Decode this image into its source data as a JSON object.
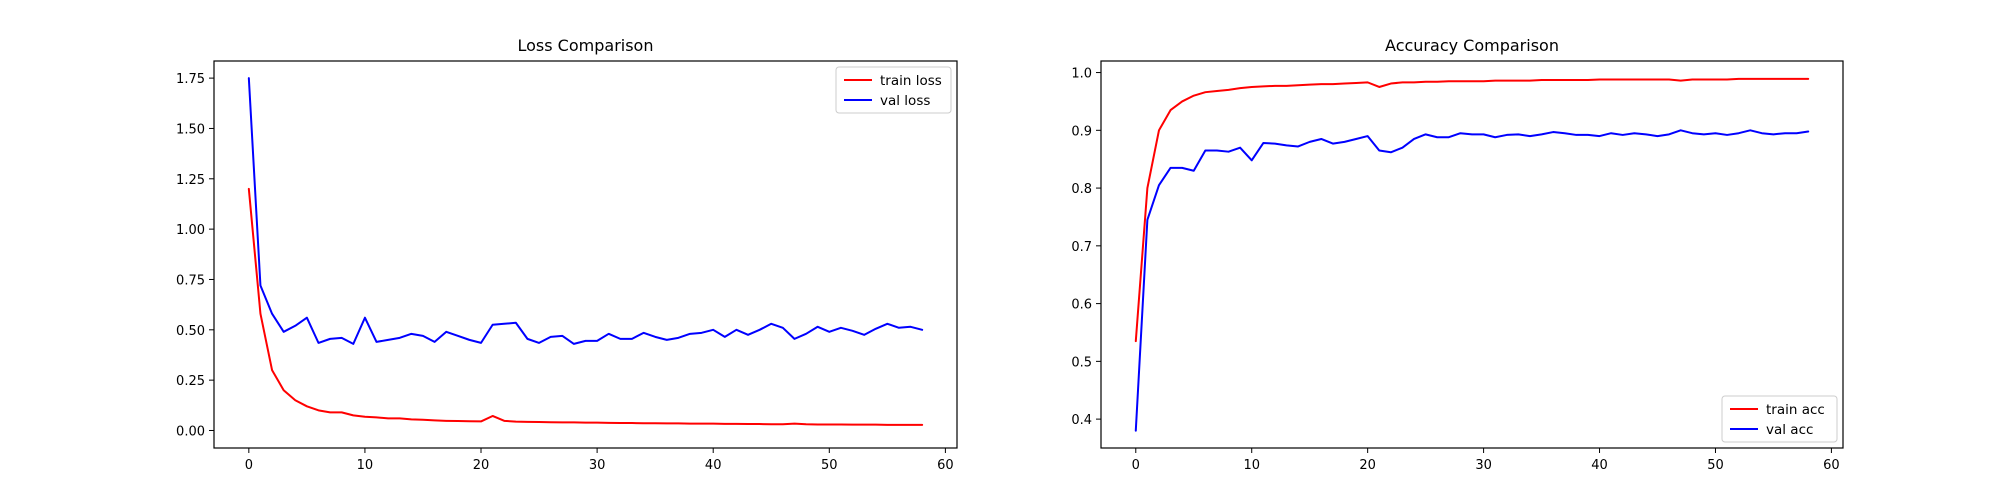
{
  "chart_data": [
    {
      "type": "line",
      "title": "Loss Comparison",
      "xlabel": "",
      "ylabel": "",
      "xlim": [
        -3,
        61
      ],
      "ylim": [
        -0.087,
        1.835
      ],
      "xticks": [
        0,
        10,
        20,
        30,
        40,
        50,
        60
      ],
      "yticks": [
        0.0,
        0.25,
        0.5,
        0.75,
        1.0,
        1.25,
        1.5,
        1.75
      ],
      "ytick_labels": [
        "0.00",
        "0.25",
        "0.50",
        "0.75",
        "1.00",
        "1.25",
        "1.50",
        "1.75"
      ],
      "grid": false,
      "legend_position": "upper right",
      "x": [
        0,
        1,
        2,
        3,
        4,
        5,
        6,
        7,
        8,
        9,
        10,
        11,
        12,
        13,
        14,
        15,
        16,
        17,
        18,
        19,
        20,
        21,
        22,
        23,
        24,
        25,
        26,
        27,
        28,
        29,
        30,
        31,
        32,
        33,
        34,
        35,
        36,
        37,
        38,
        39,
        40,
        41,
        42,
        43,
        44,
        45,
        46,
        47,
        48,
        49,
        50,
        51,
        52,
        53,
        54,
        55,
        56,
        57,
        58
      ],
      "series": [
        {
          "name": "train loss",
          "color": "#ff0000",
          "values": [
            1.2,
            0.58,
            0.3,
            0.2,
            0.15,
            0.12,
            0.1,
            0.09,
            0.09,
            0.075,
            0.068,
            0.065,
            0.06,
            0.06,
            0.055,
            0.053,
            0.05,
            0.048,
            0.047,
            0.046,
            0.045,
            0.072,
            0.048,
            0.044,
            0.043,
            0.042,
            0.041,
            0.04,
            0.04,
            0.039,
            0.039,
            0.038,
            0.037,
            0.037,
            0.036,
            0.036,
            0.035,
            0.035,
            0.034,
            0.034,
            0.034,
            0.033,
            0.033,
            0.032,
            0.032,
            0.031,
            0.031,
            0.034,
            0.031,
            0.03,
            0.03,
            0.03,
            0.029,
            0.029,
            0.029,
            0.028,
            0.028,
            0.028,
            0.028
          ]
        },
        {
          "name": "val loss",
          "color": "#0000ff",
          "values": [
            1.75,
            0.72,
            0.58,
            0.49,
            0.52,
            0.56,
            0.435,
            0.455,
            0.46,
            0.43,
            0.56,
            0.44,
            0.45,
            0.46,
            0.48,
            0.47,
            0.44,
            0.49,
            0.47,
            0.45,
            0.435,
            0.525,
            0.53,
            0.535,
            0.455,
            0.435,
            0.465,
            0.47,
            0.43,
            0.445,
            0.445,
            0.48,
            0.455,
            0.455,
            0.485,
            0.465,
            0.45,
            0.46,
            0.48,
            0.485,
            0.5,
            0.465,
            0.5,
            0.475,
            0.5,
            0.53,
            0.51,
            0.455,
            0.48,
            0.515,
            0.49,
            0.51,
            0.495,
            0.475,
            0.505,
            0.53,
            0.51,
            0.515,
            0.5
          ]
        }
      ]
    },
    {
      "type": "line",
      "title": "Accuracy Comparison",
      "xlabel": "",
      "ylabel": "",
      "xlim": [
        -3,
        61
      ],
      "ylim": [
        0.35,
        1.02
      ],
      "xticks": [
        0,
        10,
        20,
        30,
        40,
        50,
        60
      ],
      "yticks": [
        0.4,
        0.5,
        0.6,
        0.7,
        0.8,
        0.9,
        1.0
      ],
      "ytick_labels": [
        "0.4",
        "0.5",
        "0.6",
        "0.7",
        "0.8",
        "0.9",
        "1.0"
      ],
      "grid": false,
      "legend_position": "lower right",
      "x": [
        0,
        1,
        2,
        3,
        4,
        5,
        6,
        7,
        8,
        9,
        10,
        11,
        12,
        13,
        14,
        15,
        16,
        17,
        18,
        19,
        20,
        21,
        22,
        23,
        24,
        25,
        26,
        27,
        28,
        29,
        30,
        31,
        32,
        33,
        34,
        35,
        36,
        37,
        38,
        39,
        40,
        41,
        42,
        43,
        44,
        45,
        46,
        47,
        48,
        49,
        50,
        51,
        52,
        53,
        54,
        55,
        56,
        57,
        58
      ],
      "series": [
        {
          "name": "train acc",
          "color": "#ff0000",
          "values": [
            0.535,
            0.8,
            0.9,
            0.935,
            0.95,
            0.96,
            0.966,
            0.968,
            0.97,
            0.973,
            0.975,
            0.976,
            0.977,
            0.977,
            0.978,
            0.979,
            0.98,
            0.98,
            0.981,
            0.982,
            0.983,
            0.975,
            0.981,
            0.983,
            0.983,
            0.984,
            0.984,
            0.985,
            0.985,
            0.985,
            0.985,
            0.986,
            0.986,
            0.986,
            0.986,
            0.987,
            0.987,
            0.987,
            0.987,
            0.987,
            0.988,
            0.988,
            0.988,
            0.988,
            0.988,
            0.988,
            0.988,
            0.986,
            0.988,
            0.988,
            0.988,
            0.988,
            0.989,
            0.989,
            0.989,
            0.989,
            0.989,
            0.989,
            0.989
          ]
        },
        {
          "name": "val acc",
          "color": "#0000ff",
          "values": [
            0.38,
            0.745,
            0.805,
            0.835,
            0.835,
            0.83,
            0.865,
            0.865,
            0.863,
            0.87,
            0.848,
            0.878,
            0.877,
            0.874,
            0.872,
            0.88,
            0.885,
            0.877,
            0.88,
            0.885,
            0.89,
            0.865,
            0.862,
            0.87,
            0.885,
            0.893,
            0.888,
            0.888,
            0.895,
            0.893,
            0.893,
            0.888,
            0.892,
            0.893,
            0.89,
            0.893,
            0.897,
            0.895,
            0.892,
            0.892,
            0.89,
            0.895,
            0.892,
            0.895,
            0.893,
            0.89,
            0.893,
            0.9,
            0.895,
            0.893,
            0.895,
            0.892,
            0.895,
            0.9,
            0.895,
            0.893,
            0.895,
            0.895,
            0.898
          ]
        }
      ]
    }
  ]
}
